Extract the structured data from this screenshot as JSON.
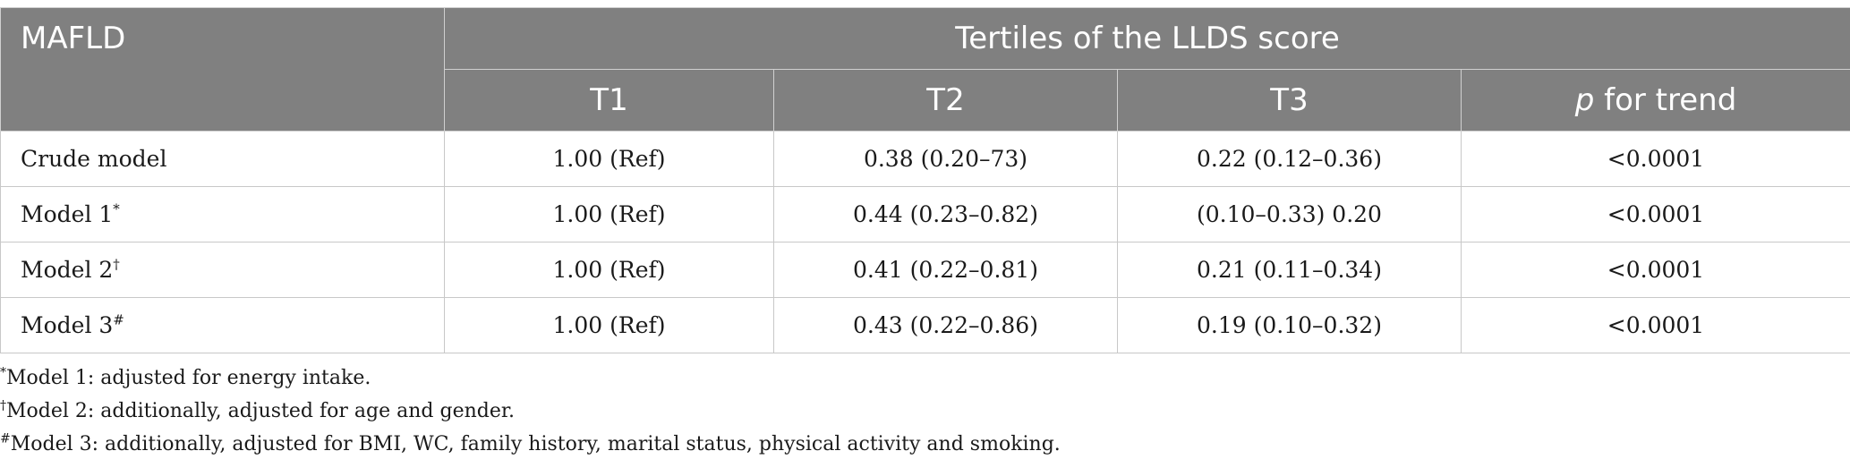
{
  "table": {
    "stub_header": "MAFLD",
    "group_header": "Tertiles of the LLDS score",
    "columns": [
      {
        "label": "T1"
      },
      {
        "label": "T2"
      },
      {
        "label": "T3"
      },
      {
        "italic": "p",
        "label": " for trend"
      }
    ],
    "rows": [
      {
        "label": "Crude model",
        "mark": "",
        "cells": [
          "1.00 (Ref)",
          "0.38 (0.20–73)",
          "0.22 (0.12–0.36)",
          "<0.0001"
        ]
      },
      {
        "label": "Model 1",
        "mark": "*",
        "cells": [
          "1.00 (Ref)",
          "0.44 (0.23–0.82)",
          "(0.10–0.33) 0.20",
          "<0.0001"
        ]
      },
      {
        "label": "Model 2",
        "mark": "†",
        "cells": [
          "1.00 (Ref)",
          "0.41 (0.22–0.81)",
          "0.21 (0.11–0.34)",
          "<0.0001"
        ]
      },
      {
        "label": "Model 3",
        "mark": "#",
        "cells": [
          "1.00 (Ref)",
          "0.43 (0.22–0.86)",
          "0.19 (0.10–0.32)",
          "<0.0001"
        ]
      }
    ]
  },
  "footnotes": [
    {
      "mark": "*",
      "text": "Model 1: adjusted for energy intake."
    },
    {
      "mark": "†",
      "text": "Model 2: additionally, adjusted for age and gender."
    },
    {
      "mark": "#",
      "text": "Model 3: additionally, adjusted for BMI, WC, family history, marital status, physical activity and smoking."
    }
  ]
}
